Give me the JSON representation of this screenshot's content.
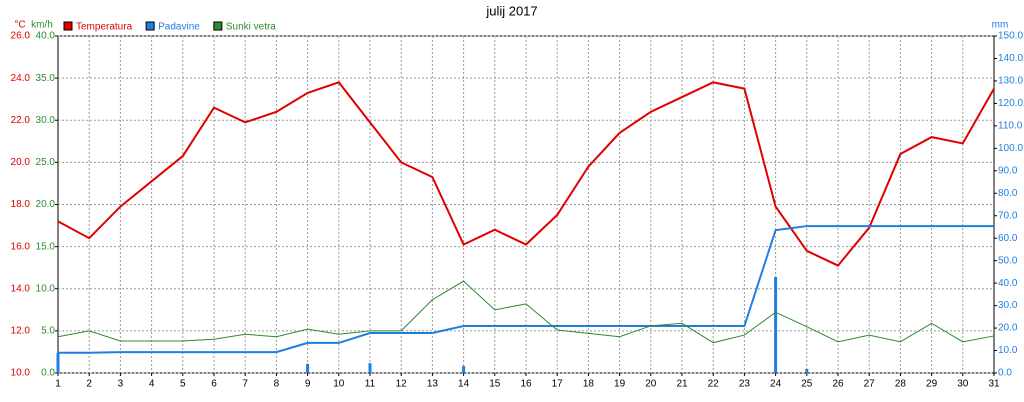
{
  "chart_data": {
    "type": "line",
    "title": "julij 2017",
    "y_unit": "°C",
    "y2_unit": "km/h",
    "y3_unit": "mm",
    "x": [
      1,
      2,
      3,
      4,
      5,
      6,
      7,
      8,
      9,
      10,
      11,
      12,
      13,
      14,
      15,
      16,
      17,
      18,
      19,
      20,
      21,
      22,
      23,
      24,
      25,
      26,
      27,
      28,
      29,
      30,
      31
    ],
    "xlim": [
      1,
      31
    ],
    "xticks": [
      1,
      2,
      3,
      4,
      5,
      6,
      7,
      8,
      9,
      10,
      11,
      12,
      13,
      14,
      15,
      16,
      17,
      18,
      19,
      20,
      21,
      22,
      23,
      24,
      25,
      26,
      27,
      28,
      29,
      30,
      31
    ],
    "ylim": [
      10,
      26
    ],
    "yticks": [
      {
        "value": 10,
        "label": "10.0"
      },
      {
        "value": 12,
        "label": "12.0"
      },
      {
        "value": 14,
        "label": "14.0"
      },
      {
        "value": 16,
        "label": "16.0"
      },
      {
        "value": 18,
        "label": "18.0"
      },
      {
        "value": 20,
        "label": "20.0"
      },
      {
        "value": 22,
        "label": "22.0"
      },
      {
        "value": 24,
        "label": "24.0"
      },
      {
        "value": 26,
        "label": "26.0"
      }
    ],
    "y2lim": [
      0,
      40
    ],
    "y2ticks": [
      {
        "value": 0,
        "label": "0.0"
      },
      {
        "value": 5,
        "label": "5.0"
      },
      {
        "value": 10,
        "label": "10.0"
      },
      {
        "value": 15,
        "label": "15.0"
      },
      {
        "value": 20,
        "label": "20.0"
      },
      {
        "value": 25,
        "label": "25.0"
      },
      {
        "value": 30,
        "label": "30.0"
      },
      {
        "value": 35,
        "label": "35.0"
      },
      {
        "value": 40,
        "label": "40.0"
      }
    ],
    "y3lim": [
      0,
      150
    ],
    "y3ticks": [
      {
        "value": 0,
        "label": "0.0"
      },
      {
        "value": 10,
        "label": "10.0"
      },
      {
        "value": 20,
        "label": "20.0"
      },
      {
        "value": 30,
        "label": "30.0"
      },
      {
        "value": 40,
        "label": "40.0"
      },
      {
        "value": 50,
        "label": "50.0"
      },
      {
        "value": 60,
        "label": "60.0"
      },
      {
        "value": 70,
        "label": "70.0"
      },
      {
        "value": 80,
        "label": "80.0"
      },
      {
        "value": 90,
        "label": "90.0"
      },
      {
        "value": 100,
        "label": "100.0"
      },
      {
        "value": 110,
        "label": "110.0"
      },
      {
        "value": 120,
        "label": "120.0"
      },
      {
        "value": 130,
        "label": "130.0"
      },
      {
        "value": 140,
        "label": "140.0"
      },
      {
        "value": 150,
        "label": "150.0"
      }
    ],
    "grid": true,
    "series": [
      {
        "name": "Temperatura",
        "color": "#e00000",
        "axis": "y",
        "values": [
          17.2,
          16.4,
          17.9,
          19.1,
          20.3,
          22.6,
          21.9,
          22.4,
          23.3,
          23.8,
          21.9,
          20.0,
          19.3,
          16.1,
          16.8,
          16.1,
          17.5,
          19.8,
          21.4,
          22.4,
          23.1,
          23.8,
          23.5,
          17.9,
          15.8,
          15.1,
          16.9,
          20.4,
          21.2,
          20.9,
          23.5
        ]
      },
      {
        "name": "Padavine",
        "color": "#1e7fe0",
        "axis": "y3",
        "values": [
          9,
          9,
          9.3,
          9.3,
          9.3,
          9.3,
          9.3,
          9.3,
          13.4,
          13.4,
          17.8,
          17.8,
          17.8,
          20.9,
          20.9,
          20.9,
          20.9,
          20.9,
          20.9,
          20.9,
          20.9,
          20.9,
          20.9,
          63.6,
          65.4,
          65.4,
          65.4,
          65.4,
          65.4,
          65.4,
          65.4
        ],
        "daily_values": [
          9,
          0,
          0.3,
          0,
          0,
          0,
          0,
          0,
          4.1,
          0,
          4.4,
          0,
          0,
          3.1,
          0,
          0,
          0,
          0,
          0,
          0,
          0,
          0,
          0,
          42.7,
          1.8,
          0,
          0,
          0,
          0,
          0,
          0
        ]
      },
      {
        "name": "Sunki vetra",
        "color": "#2e8b2e",
        "axis": "y2",
        "values": [
          4.3,
          5.0,
          3.8,
          3.8,
          3.8,
          4.0,
          4.6,
          4.3,
          5.2,
          4.6,
          5.0,
          5.0,
          8.7,
          10.9,
          7.5,
          8.2,
          5.1,
          4.7,
          4.3,
          5.6,
          5.9,
          3.6,
          4.5,
          7.2,
          5.5,
          3.7,
          4.5,
          3.7,
          5.9,
          3.7,
          4.4
        ]
      }
    ]
  }
}
